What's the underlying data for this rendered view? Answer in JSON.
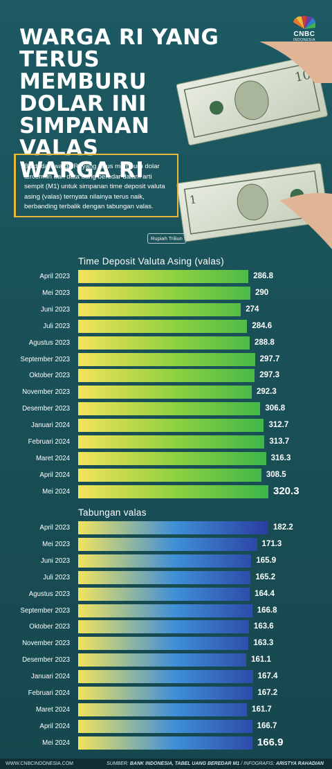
{
  "header": {
    "title_lines": [
      "WARGA RI YANG",
      "TERUS MEMBURU",
      "DOLAR INI",
      "SIMPANAN",
      "VALAS",
      "WARGA RI"
    ],
    "logo_text": "CNBC",
    "logo_sub": "INDONESIA"
  },
  "intro": "Bukti dari warga RI yang terus memburu dolar tercermin dari data uang beredar dalam arti sempit (M1) untuk simpanan time deposit valuta asing (valas) ternyata nilainya terus naik, berbanding terbalik dengan tabungan valas.",
  "unit_label": "Rupiah Triliun",
  "colors": {
    "background": "#1a5158",
    "accent_border": "#e8b83a",
    "td_gradient": [
      "#f4e25a",
      "#8ed13f",
      "#3bb54a"
    ],
    "tab_gradient": [
      "#f2e45c",
      "#3f8fd8",
      "#2a3d9e"
    ]
  },
  "chart_data": [
    {
      "type": "bar",
      "orientation": "horizontal",
      "title": "Time Deposit Valuta Asing (valas)",
      "categories": [
        "April 2023",
        "Mei 2023",
        "Juni 2023",
        "Juli 2023",
        "Agustus 2023",
        "September 2023",
        "Oktober 2023",
        "November 2023",
        "Desember 2023",
        "Januari 2024",
        "Februari 2024",
        "Maret 2024",
        "April 2024",
        "Mei 2024"
      ],
      "values": [
        286.8,
        290,
        274,
        284.6,
        288.8,
        297.7,
        297.3,
        292.3,
        306.8,
        312.7,
        313.7,
        316.3,
        308.5,
        320.3
      ],
      "labels": [
        "286.8",
        "290",
        "274",
        "284.6",
        "288.8",
        "297.7",
        "297.3",
        "292.3",
        "306.8",
        "312.7",
        "313.7",
        "316.3",
        "308.5",
        "320.3"
      ],
      "unit": "Rupiah Triliun",
      "emphasized_last": true
    },
    {
      "type": "bar",
      "orientation": "horizontal",
      "title": "Tabungan valas",
      "categories": [
        "April 2023",
        "Mei 2023",
        "Juni 2023",
        "Juli 2023",
        "Agustus 2023",
        "September 2023",
        "Oktober 2023",
        "November 2023",
        "Desember 2023",
        "Januari 2024",
        "Februari 2024",
        "Maret 2024",
        "April 2024",
        "Mei 2024"
      ],
      "values": [
        182.2,
        171.3,
        165.9,
        165.2,
        164.4,
        166.8,
        163.6,
        163.3,
        161.1,
        167.4,
        167.2,
        161.7,
        166.7,
        166.9
      ],
      "labels": [
        "182.2",
        "171.3",
        "165.9",
        "165.2",
        "164.4",
        "166.8",
        "163.6",
        "163.3",
        "161.1",
        "167.4",
        "167.2",
        "161.7",
        "166.7",
        "166.9"
      ],
      "unit": "Rupiah Triliun",
      "emphasized_last": true
    }
  ],
  "footer": {
    "website": "WWW.CNBCINDONESIA.COM",
    "source_prefix": "SUMBER: ",
    "source": "BANK INDONESIA, TABEL UANG BEREDAR M1",
    "infographic_prefix": " / INFOGRAFIS: ",
    "infographic": "ARISTYA RAHADIAN"
  }
}
